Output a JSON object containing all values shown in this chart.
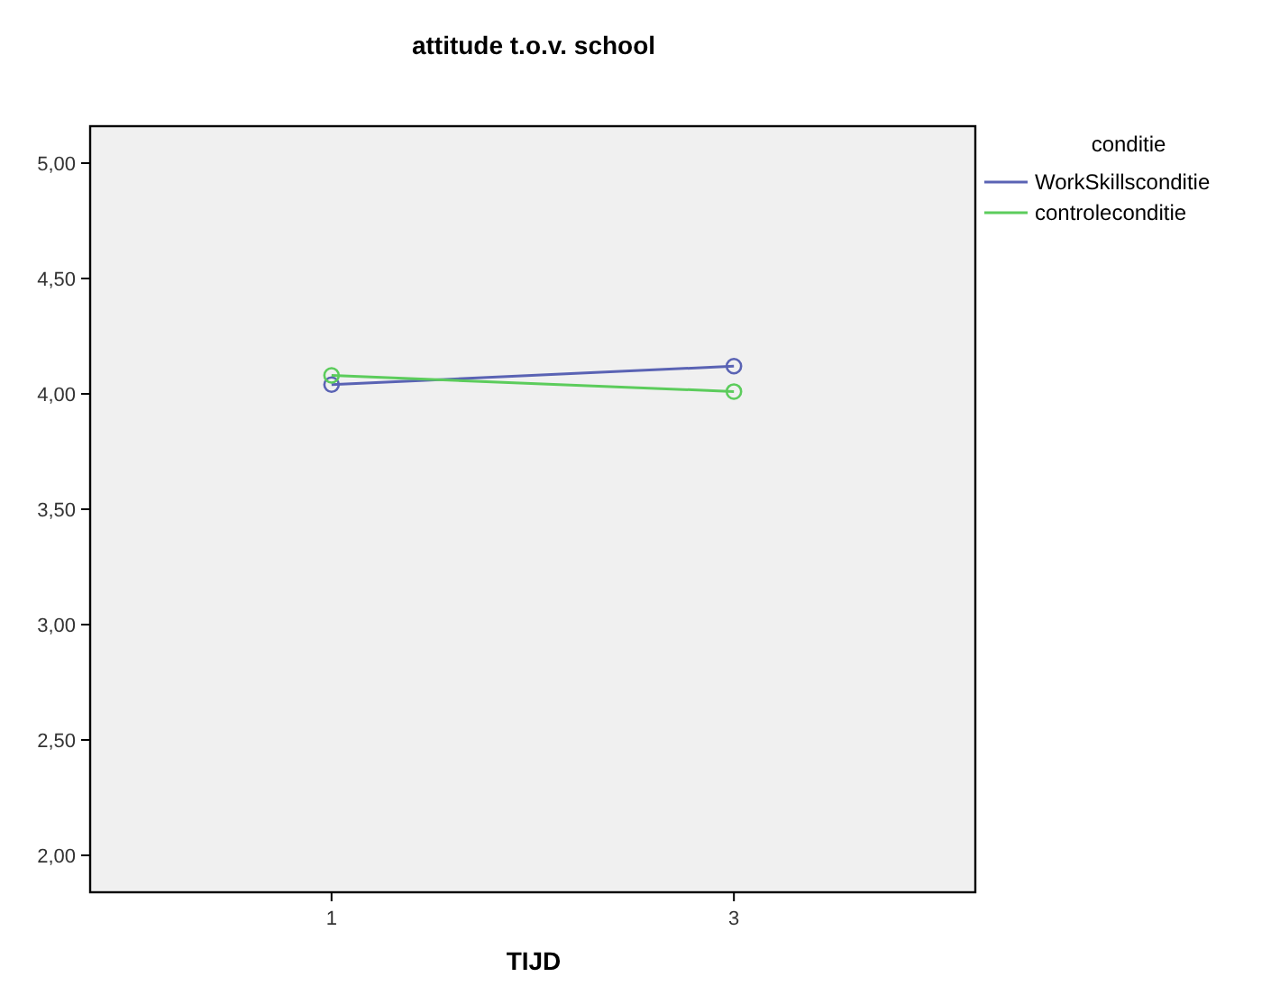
{
  "chart_data": {
    "type": "line",
    "title": "attitude t.o.v. school",
    "xlabel": "TIJD",
    "legend_title": "conditie",
    "categories": [
      "1",
      "3"
    ],
    "series": [
      {
        "name": "WorkSkillsconditie",
        "color": "#5a63b4",
        "values": [
          4.04,
          4.12
        ]
      },
      {
        "name": "controleconditie",
        "color": "#5ccc5c",
        "values": [
          4.08,
          4.01
        ]
      }
    ],
    "ylim": [
      1.84,
      5.16
    ],
    "yticks": [
      {
        "value": 2,
        "label": "2,00"
      },
      {
        "value": 2.5,
        "label": "2,50"
      },
      {
        "value": 3,
        "label": "3,00"
      },
      {
        "value": 3.5,
        "label": "3,50"
      },
      {
        "value": 4,
        "label": "4,00"
      },
      {
        "value": 4.5,
        "label": "4,50"
      },
      {
        "value": 5,
        "label": "5,00"
      }
    ],
    "marker": "circle",
    "legend": "right",
    "grid": false
  }
}
